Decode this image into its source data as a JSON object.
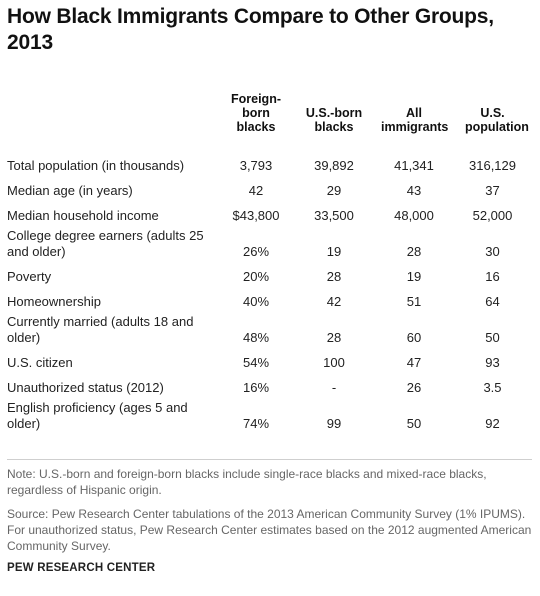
{
  "title": "How Black Immigrants Compare to Other Groups, 2013",
  "columns": [
    "Foreign-born blacks",
    "U.S.-born blacks",
    "All immigrants",
    "U.S. population"
  ],
  "rows": [
    {
      "label": "Total population (in thousands)",
      "values": [
        "3,793",
        "39,892",
        "41,341",
        "316,129"
      ]
    },
    {
      "label": "Median age (in years)",
      "values": [
        "42",
        "29",
        "43",
        "37"
      ]
    },
    {
      "label": "Median household income",
      "values": [
        "$43,800",
        "33,500",
        "48,000",
        "52,000"
      ]
    },
    {
      "label": "College degree earners (adults 25 and older)",
      "values": [
        "26%",
        "19",
        "28",
        "30"
      ]
    },
    {
      "label": "Poverty",
      "values": [
        "20%",
        "28",
        "19",
        "16"
      ]
    },
    {
      "label": "Homeownership",
      "values": [
        "40%",
        "42",
        "51",
        "64"
      ]
    },
    {
      "label": "Currently married (adults 18 and older)",
      "values": [
        "48%",
        "28",
        "60",
        "50"
      ]
    },
    {
      "label": "U.S. citizen",
      "values": [
        "54%",
        "100",
        "47",
        "93"
      ]
    },
    {
      "label": "Unauthorized status (2012)",
      "values": [
        "16%",
        "-",
        "26",
        "3.5"
      ]
    },
    {
      "label": "English proficiency (ages 5 and older)",
      "values": [
        "74%",
        "99",
        "50",
        "92"
      ]
    }
  ],
  "note": "Note: U.S.-born and foreign-born blacks include single-race blacks and mixed-race blacks, regardless of Hispanic origin.",
  "source": "Source: Pew Research Center tabulations of the 2013 American Community Survey (1% IPUMS). For unauthorized status, Pew Research Center estimates based on the 2012 augmented American Community Survey.",
  "brand": "PEW RESEARCH CENTER"
}
